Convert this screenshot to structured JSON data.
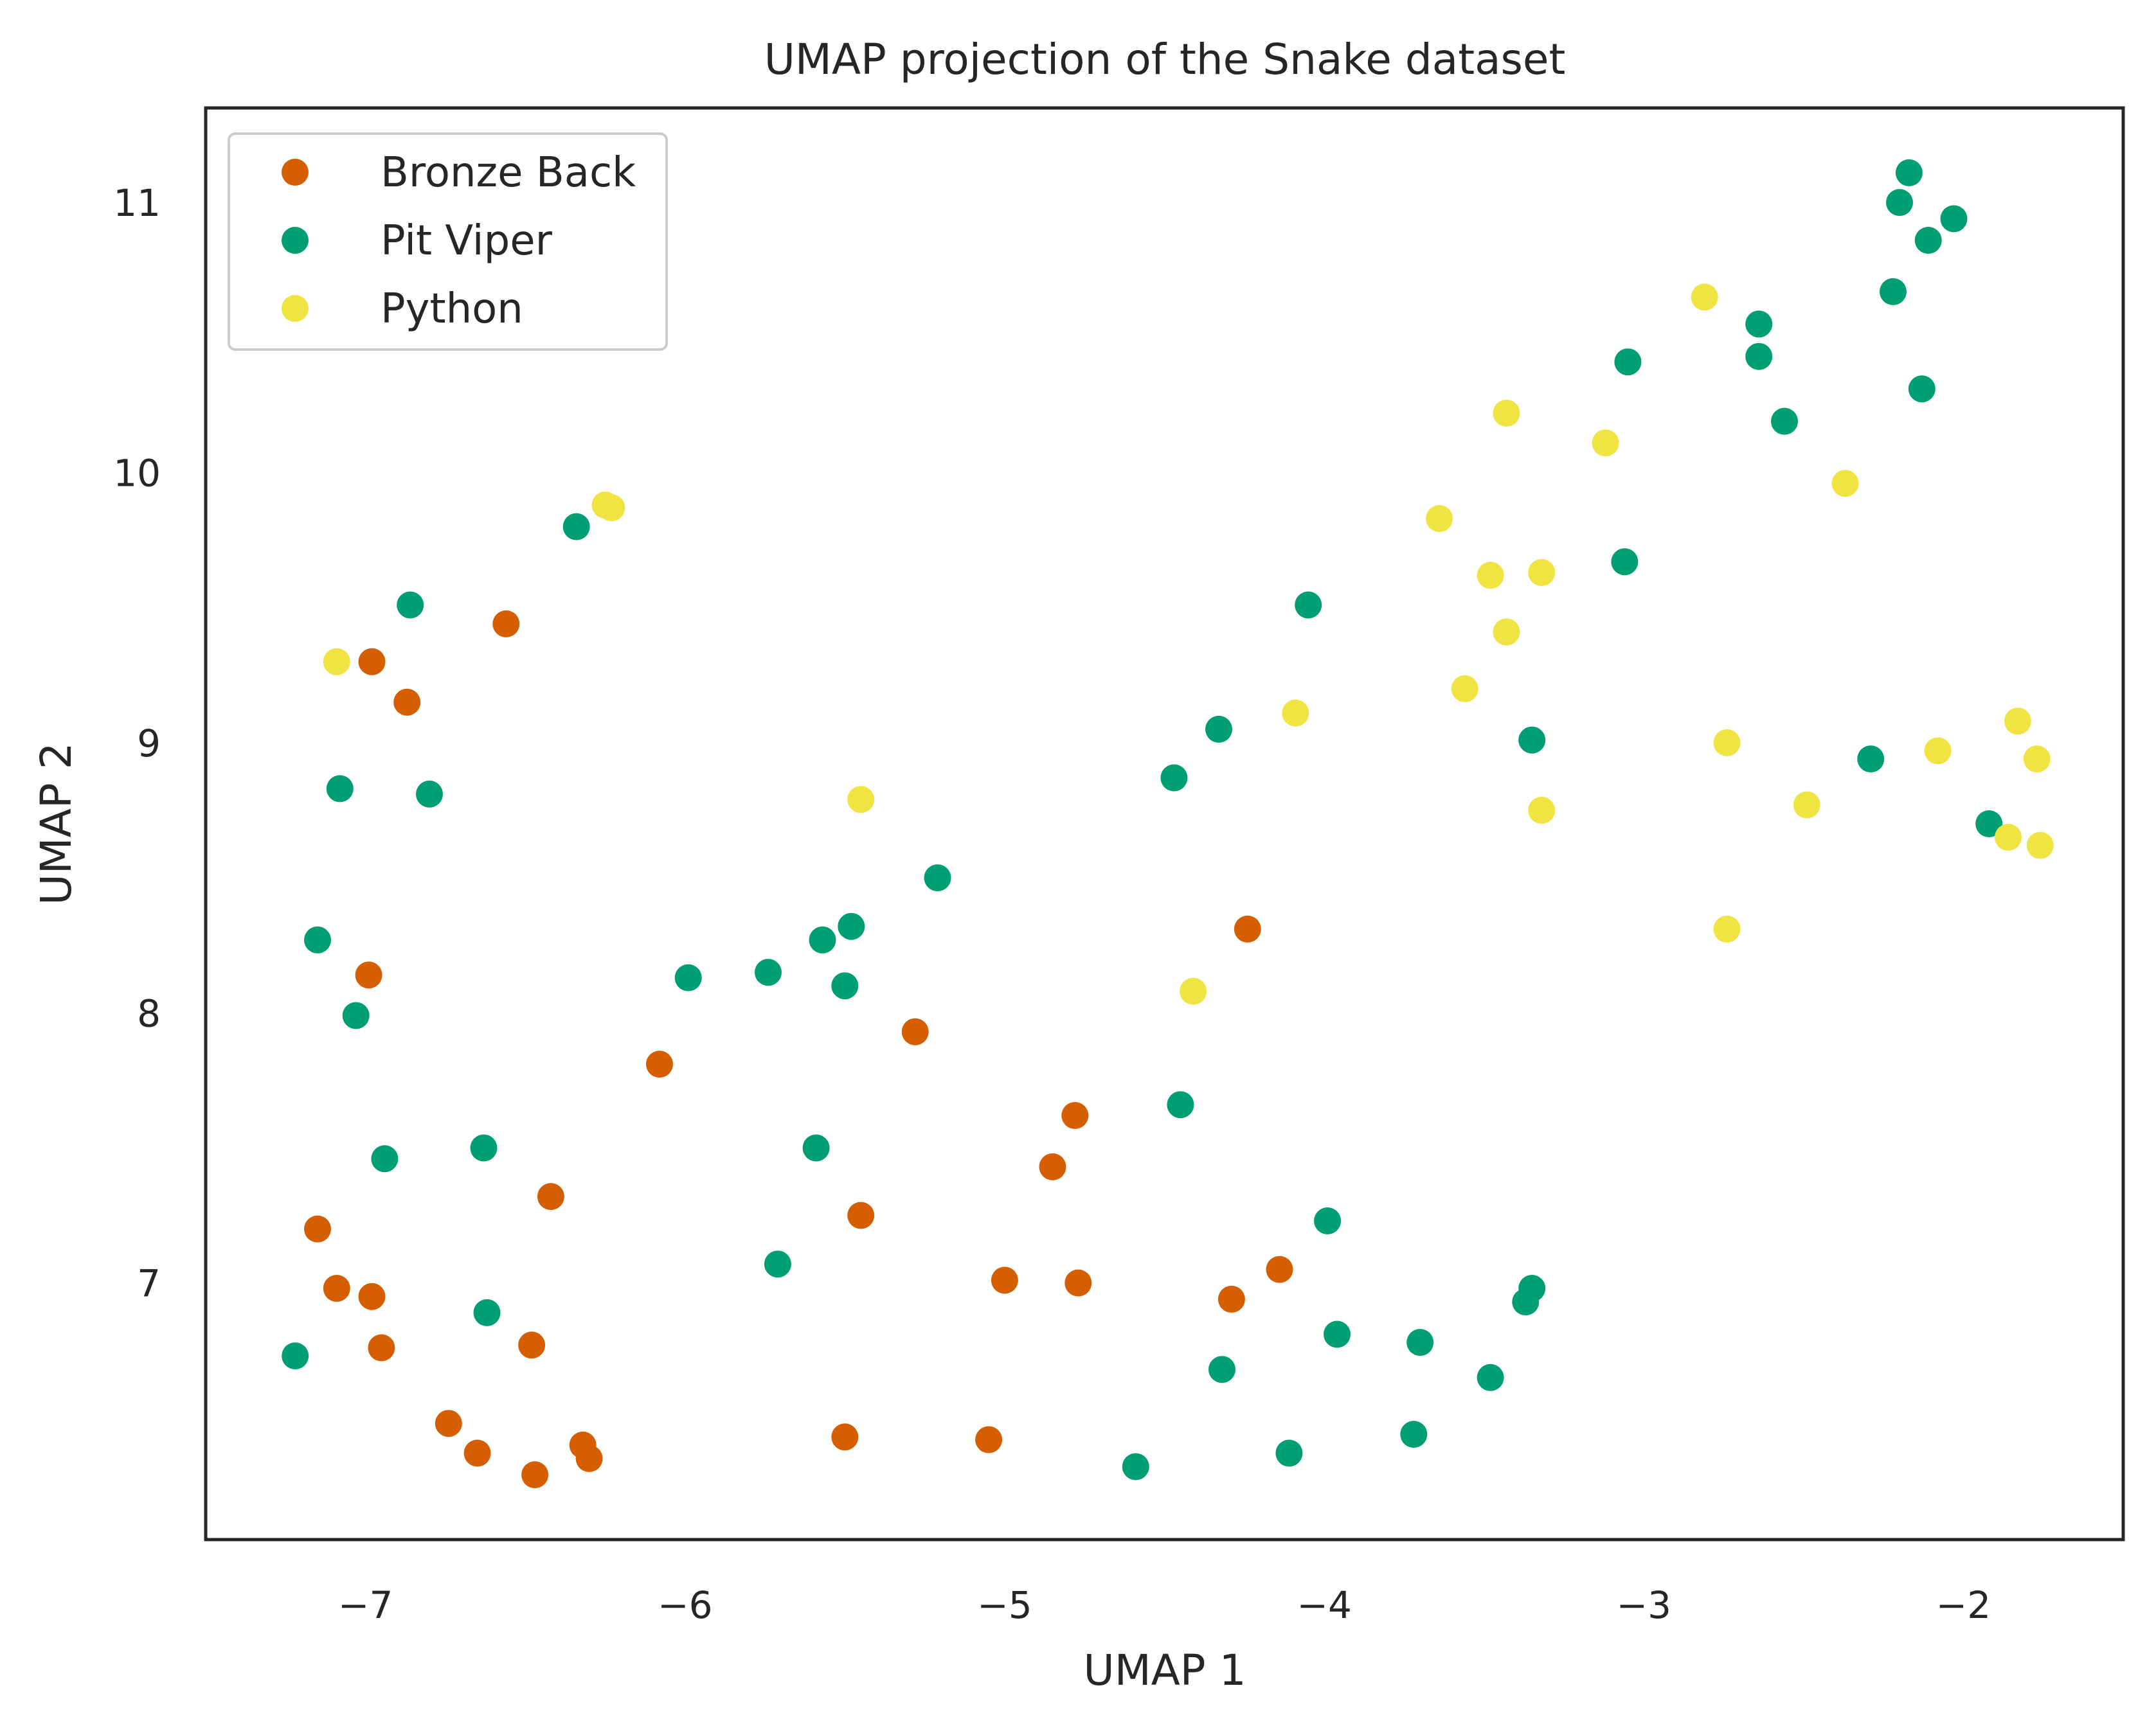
{
  "chart_data": {
    "type": "scatter",
    "title": "UMAP projection of the Snake dataset",
    "xlabel": "UMAP 1",
    "ylabel": "UMAP 2",
    "xlim": [
      -7.5,
      -1.5
    ],
    "ylim": [
      6.05,
      11.35
    ],
    "xticks": [
      -7,
      -6,
      -5,
      -4,
      -3,
      -2
    ],
    "xtick_labels": [
      "−7",
      "−6",
      "−5",
      "−4",
      "−3",
      "−2"
    ],
    "yticks": [
      7,
      8,
      9,
      10,
      11
    ],
    "ytick_labels": [
      "7",
      "8",
      "9",
      "10",
      "11"
    ],
    "grid": false,
    "legend_position": "upper-left",
    "series": [
      {
        "name": "Bronze Back",
        "color": "#d55e00",
        "points": [
          [
            -6.98,
            9.3
          ],
          [
            -6.87,
            9.15
          ],
          [
            -6.56,
            9.44
          ],
          [
            -6.99,
            8.14
          ],
          [
            -6.08,
            7.81
          ],
          [
            -5.28,
            7.93
          ],
          [
            -4.24,
            8.31
          ],
          [
            -4.78,
            7.62
          ],
          [
            -4.85,
            7.43
          ],
          [
            -5.45,
            7.25
          ],
          [
            -6.42,
            7.32
          ],
          [
            -7.15,
            7.2
          ],
          [
            -7.09,
            6.98
          ],
          [
            -6.98,
            6.95
          ],
          [
            -6.95,
            6.76
          ],
          [
            -6.48,
            6.77
          ],
          [
            -6.74,
            6.48
          ],
          [
            -6.65,
            6.37
          ],
          [
            -6.47,
            6.29
          ],
          [
            -6.32,
            6.4
          ],
          [
            -6.3,
            6.35
          ],
          [
            -5.5,
            6.43
          ],
          [
            -5.05,
            6.42
          ],
          [
            -5.0,
            7.01
          ],
          [
            -4.77,
            7.0
          ],
          [
            -4.29,
            6.94
          ],
          [
            -4.14,
            7.05
          ]
        ]
      },
      {
        "name": "Pit Viper",
        "color": "#009e73",
        "points": [
          [
            -6.34,
            9.8
          ],
          [
            -6.86,
            9.51
          ],
          [
            -7.08,
            8.83
          ],
          [
            -6.8,
            8.81
          ],
          [
            -7.15,
            8.27
          ],
          [
            -7.03,
            7.99
          ],
          [
            -6.94,
            7.46
          ],
          [
            -6.63,
            7.5
          ],
          [
            -6.62,
            6.89
          ],
          [
            -7.22,
            6.73
          ],
          [
            -5.99,
            8.13
          ],
          [
            -5.74,
            8.15
          ],
          [
            -5.57,
            8.27
          ],
          [
            -5.48,
            8.32
          ],
          [
            -5.5,
            8.1
          ],
          [
            -5.21,
            8.5
          ],
          [
            -5.59,
            7.5
          ],
          [
            -5.71,
            7.07
          ],
          [
            -4.47,
            8.87
          ],
          [
            -4.33,
            9.05
          ],
          [
            -4.05,
            9.51
          ],
          [
            -4.45,
            7.66
          ],
          [
            -3.99,
            7.23
          ],
          [
            -3.96,
            6.81
          ],
          [
            -3.7,
            6.78
          ],
          [
            -4.32,
            6.68
          ],
          [
            -4.11,
            6.37
          ],
          [
            -4.59,
            6.32
          ],
          [
            -3.72,
            6.44
          ],
          [
            -3.48,
            6.65
          ],
          [
            -3.37,
            6.93
          ],
          [
            -3.35,
            6.98
          ],
          [
            -3.35,
            9.01
          ],
          [
            -3.06,
            9.67
          ],
          [
            -3.05,
            10.41
          ],
          [
            -2.64,
            10.55
          ],
          [
            -2.64,
            10.43
          ],
          [
            -2.56,
            10.19
          ],
          [
            -2.22,
            10.67
          ],
          [
            -2.13,
            10.31
          ],
          [
            -2.2,
            11.0
          ],
          [
            -2.17,
            11.11
          ],
          [
            -2.11,
            10.86
          ],
          [
            -2.03,
            10.94
          ],
          [
            -2.29,
            8.94
          ],
          [
            -1.92,
            8.7
          ]
        ]
      },
      {
        "name": "Python",
        "color": "#f0e442",
        "points": [
          [
            -7.09,
            9.3
          ],
          [
            -6.25,
            9.88
          ],
          [
            -6.23,
            9.87
          ],
          [
            -5.45,
            8.79
          ],
          [
            -4.41,
            8.08
          ],
          [
            -4.09,
            9.11
          ],
          [
            -3.64,
            9.83
          ],
          [
            -3.48,
            9.62
          ],
          [
            -3.43,
            9.41
          ],
          [
            -3.43,
            10.22
          ],
          [
            -3.32,
            9.63
          ],
          [
            -3.32,
            8.75
          ],
          [
            -3.56,
            9.2
          ],
          [
            -3.12,
            10.11
          ],
          [
            -2.81,
            10.65
          ],
          [
            -2.74,
            9.0
          ],
          [
            -2.74,
            8.31
          ],
          [
            -2.49,
            8.77
          ],
          [
            -2.37,
            9.96
          ],
          [
            -2.08,
            8.97
          ],
          [
            -1.86,
            8.65
          ],
          [
            -1.83,
            9.08
          ],
          [
            -1.77,
            8.94
          ],
          [
            -1.76,
            8.62
          ]
        ]
      }
    ]
  }
}
